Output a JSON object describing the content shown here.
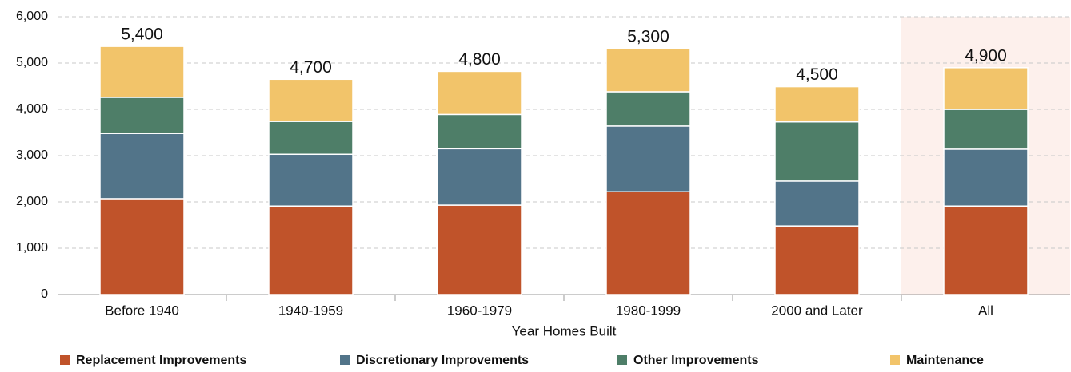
{
  "chart_data": {
    "type": "stacked_bar",
    "x_label": "Year Homes Built",
    "categories": [
      "Before 1940",
      "1940-1959",
      "1960-1979",
      "1980-1999",
      "2000 and Later",
      "All"
    ],
    "series": [
      {
        "name": "Replacement Improvements",
        "color": "#c0532a",
        "values": [
          2070,
          1910,
          1930,
          2220,
          1480,
          1910
        ]
      },
      {
        "name": "Discretionary Improvements",
        "color": "#527489",
        "values": [
          1410,
          1120,
          1220,
          1420,
          970,
          1230
        ]
      },
      {
        "name": "Other Improvements",
        "color": "#4e7e68",
        "values": [
          780,
          710,
          740,
          740,
          1280,
          860
        ]
      },
      {
        "name": "Maintenance",
        "color": "#f2c46a",
        "values": [
          1100,
          910,
          930,
          930,
          760,
          900
        ]
      }
    ],
    "totals": {
      "values": [
        5400,
        4700,
        4800,
        5300,
        4500,
        4900
      ],
      "value_labels": [
        "5,400",
        "4,700",
        "4,800",
        "5,300",
        "4,500",
        "4,900"
      ]
    },
    "highlight": "All",
    "highlight_color": "#fdf0ec",
    "ylim": [
      0,
      6000
    ],
    "yticks": [
      0,
      {
        "value": 1000,
        "label": "1,000"
      },
      {
        "value": 2000,
        "label": "2,000"
      },
      {
        "value": 3000,
        "label": "3,000"
      },
      {
        "value": 4000,
        "label": "4,000"
      },
      {
        "value": 5000,
        "label": "5,000"
      },
      {
        "value": 6000,
        "label": "6,000"
      }
    ],
    "grid": true,
    "legend": "bottom"
  }
}
